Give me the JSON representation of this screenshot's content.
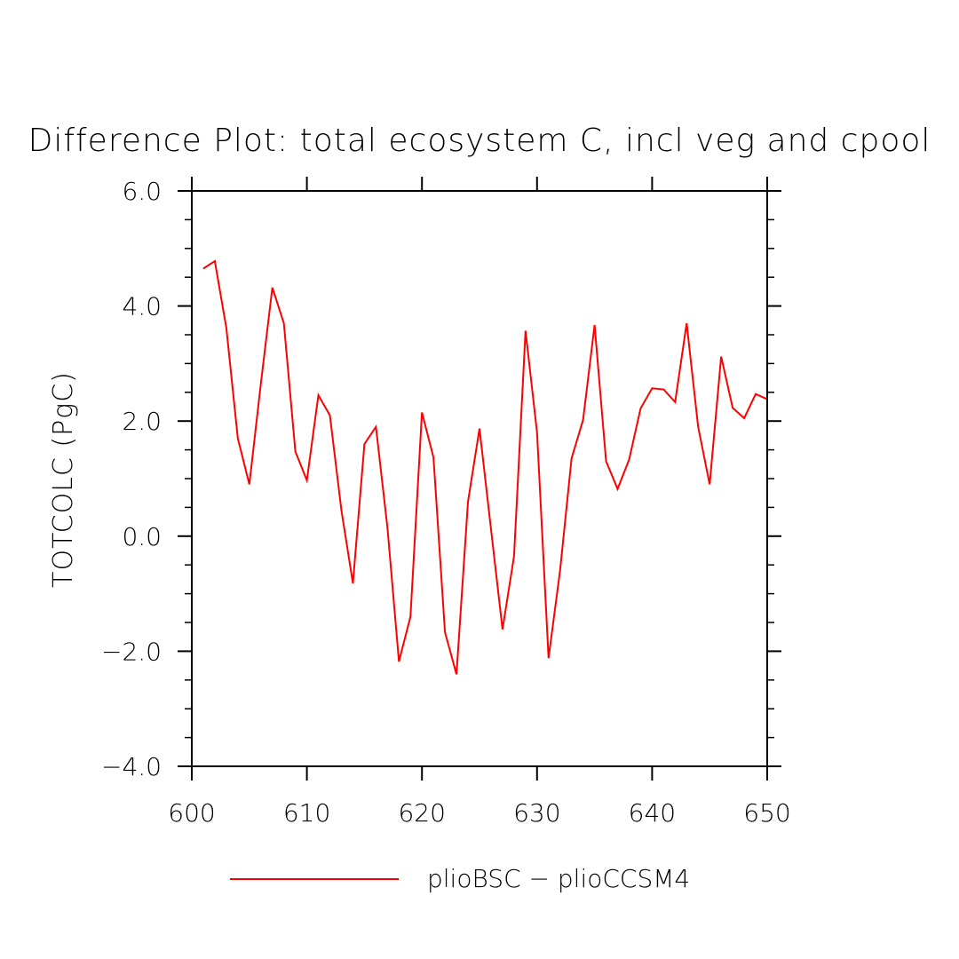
{
  "chart_data": {
    "type": "line",
    "title": "Difference Plot: total ecosystem C, incl veg and cpool",
    "xlabel": "",
    "ylabel": "TOTCOLC  (PgC)",
    "xlim": [
      600,
      650
    ],
    "ylim": [
      -4.0,
      6.0
    ],
    "x_ticks": [
      600,
      610,
      620,
      630,
      640,
      650
    ],
    "x_tick_labels": [
      "600",
      "610",
      "620",
      "630",
      "640",
      "650"
    ],
    "y_ticks": [
      -4.0,
      -2.0,
      0.0,
      2.0,
      4.0,
      6.0
    ],
    "y_tick_labels": [
      "−4.0",
      "−2.0",
      "0.0",
      "2.0",
      "4.0",
      "6.0"
    ],
    "grid": false,
    "legend_position": "bottom",
    "series": [
      {
        "name": "plioBSC − plioCCSM4",
        "color": "#ff0000",
        "x": [
          601,
          602,
          603,
          604,
          605,
          606,
          607,
          608,
          609,
          610,
          611,
          612,
          613,
          614,
          615,
          616,
          617,
          618,
          619,
          620,
          621,
          622,
          623,
          624,
          625,
          626,
          627,
          628,
          629,
          630,
          631,
          632,
          633,
          634,
          635,
          636,
          637,
          638,
          639,
          640,
          641,
          642,
          643,
          644,
          645,
          646,
          647,
          648,
          649,
          650
        ],
        "values": [
          4.65,
          4.78,
          3.62,
          1.7,
          0.9,
          2.65,
          4.32,
          3.7,
          1.47,
          0.97,
          2.45,
          2.1,
          0.45,
          -0.82,
          1.6,
          1.9,
          0.15,
          -2.18,
          -1.4,
          2.15,
          1.37,
          -1.67,
          -2.4,
          0.6,
          1.87,
          0.12,
          -1.62,
          -0.35,
          3.57,
          1.8,
          -2.12,
          -0.6,
          1.35,
          2.02,
          3.67,
          1.3,
          0.82,
          1.33,
          2.22,
          2.57,
          2.55,
          2.33,
          3.7,
          1.9,
          0.9,
          3.12,
          2.23,
          2.05,
          2.47,
          2.38
        ]
      }
    ]
  }
}
